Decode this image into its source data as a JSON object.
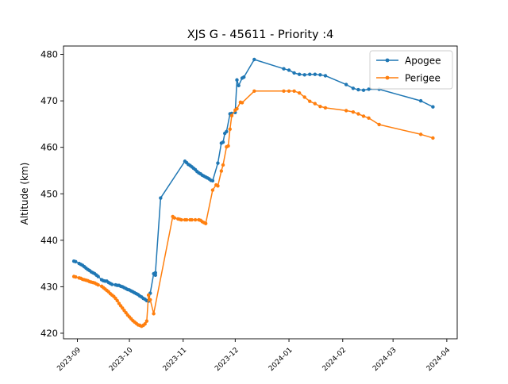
{
  "chart_data": {
    "type": "line",
    "title": "XJS G - 45611 - Priority :4",
    "xlabel": "",
    "ylabel": "Altitude (km)",
    "xlim": [
      "2023-08-24",
      "2024-04-07"
    ],
    "ylim": [
      418.8,
      481.8
    ],
    "x_ticks": [
      "2023-09",
      "2023-10",
      "2023-11",
      "2023-12",
      "2024-01",
      "2024-02",
      "2024-03",
      "2024-04"
    ],
    "y_ticks": [
      420,
      430,
      440,
      450,
      460,
      470,
      480
    ],
    "grid": false,
    "legend_position": "top-right",
    "series": [
      {
        "name": "Apogee",
        "color": "#1f77b4",
        "points": [
          [
            "2023-08-30",
            435.5
          ],
          [
            "2023-08-31",
            435.4
          ],
          [
            "2023-09-02",
            435.0
          ],
          [
            "2023-09-03",
            434.8
          ],
          [
            "2023-09-04",
            434.6
          ],
          [
            "2023-09-05",
            434.3
          ],
          [
            "2023-09-06",
            434.0
          ],
          [
            "2023-09-07",
            433.7
          ],
          [
            "2023-09-08",
            433.5
          ],
          [
            "2023-09-09",
            433.2
          ],
          [
            "2023-09-10",
            433.0
          ],
          [
            "2023-09-11",
            432.8
          ],
          [
            "2023-09-12",
            432.5
          ],
          [
            "2023-09-13",
            432.2
          ],
          [
            "2023-09-15",
            431.5
          ],
          [
            "2023-09-16",
            431.3
          ],
          [
            "2023-09-17",
            431.2
          ],
          [
            "2023-09-18",
            431.2
          ],
          [
            "2023-09-19",
            430.9
          ],
          [
            "2023-09-20",
            430.7
          ],
          [
            "2023-09-21",
            430.5
          ],
          [
            "2023-09-23",
            430.4
          ],
          [
            "2023-09-24",
            430.3
          ],
          [
            "2023-09-25",
            430.3
          ],
          [
            "2023-09-26",
            430.1
          ],
          [
            "2023-09-27",
            430.0
          ],
          [
            "2023-09-28",
            429.8
          ],
          [
            "2023-09-29",
            429.6
          ],
          [
            "2023-09-30",
            429.4
          ],
          [
            "2023-10-01",
            429.3
          ],
          [
            "2023-10-02",
            429.1
          ],
          [
            "2023-10-03",
            428.9
          ],
          [
            "2023-10-04",
            428.7
          ],
          [
            "2023-10-05",
            428.5
          ],
          [
            "2023-10-06",
            428.3
          ],
          [
            "2023-10-07",
            428.0
          ],
          [
            "2023-10-08",
            427.8
          ],
          [
            "2023-10-09",
            427.5
          ],
          [
            "2023-10-10",
            427.3
          ],
          [
            "2023-10-11",
            427.0
          ],
          [
            "2023-10-12",
            426.9
          ],
          [
            "2023-10-13",
            428.6
          ],
          [
            "2023-10-15",
            432.8
          ],
          [
            "2023-10-16",
            432.5
          ],
          [
            "2023-10-16",
            433.0
          ],
          [
            "2023-10-19",
            449.1
          ],
          [
            "2023-11-02",
            457.0
          ],
          [
            "2023-11-03",
            456.7
          ],
          [
            "2023-11-04",
            456.3
          ],
          [
            "2023-11-05",
            456.1
          ],
          [
            "2023-11-06",
            455.8
          ],
          [
            "2023-11-07",
            455.5
          ],
          [
            "2023-11-08",
            455.2
          ],
          [
            "2023-11-09",
            454.8
          ],
          [
            "2023-11-10",
            454.5
          ],
          [
            "2023-11-11",
            454.3
          ],
          [
            "2023-11-12",
            454.0
          ],
          [
            "2023-11-13",
            453.8
          ],
          [
            "2023-11-14",
            453.6
          ],
          [
            "2023-11-15",
            453.4
          ],
          [
            "2023-11-16",
            453.2
          ],
          [
            "2023-11-17",
            452.9
          ],
          [
            "2023-11-18",
            452.8
          ],
          [
            "2023-11-21",
            456.6
          ],
          [
            "2023-11-23",
            460.9
          ],
          [
            "2023-11-24",
            461.1
          ],
          [
            "2023-11-25",
            463.0
          ],
          [
            "2023-11-26",
            463.4
          ],
          [
            "2023-11-28",
            467.2
          ],
          [
            "2023-11-29",
            467.3
          ],
          [
            "2023-12-01",
            467.5
          ],
          [
            "2023-12-02",
            474.5
          ],
          [
            "2023-12-03",
            473.3
          ],
          [
            "2023-12-05",
            474.9
          ],
          [
            "2023-12-06",
            475.1
          ],
          [
            "2023-12-12",
            478.9
          ],
          [
            "2023-12-29",
            476.9
          ],
          [
            "2024-01-01",
            476.6
          ],
          [
            "2024-01-04",
            476.0
          ],
          [
            "2024-01-07",
            475.7
          ],
          [
            "2024-01-10",
            475.6
          ],
          [
            "2024-01-13",
            475.7
          ],
          [
            "2024-01-16",
            475.7
          ],
          [
            "2024-01-19",
            475.6
          ],
          [
            "2024-01-22",
            475.4
          ],
          [
            "2024-02-03",
            473.5
          ],
          [
            "2024-02-07",
            472.7
          ],
          [
            "2024-02-10",
            472.4
          ],
          [
            "2024-02-13",
            472.3
          ],
          [
            "2024-02-16",
            472.5
          ],
          [
            "2024-02-22",
            472.5
          ],
          [
            "2024-03-17",
            470.0
          ],
          [
            "2024-03-24",
            468.7
          ]
        ]
      },
      {
        "name": "Perigee",
        "color": "#ff7f0e",
        "points": [
          [
            "2023-08-30",
            432.2
          ],
          [
            "2023-08-31",
            432.1
          ],
          [
            "2023-09-02",
            431.9
          ],
          [
            "2023-09-03",
            431.8
          ],
          [
            "2023-09-04",
            431.6
          ],
          [
            "2023-09-05",
            431.5
          ],
          [
            "2023-09-06",
            431.4
          ],
          [
            "2023-09-07",
            431.3
          ],
          [
            "2023-09-08",
            431.1
          ],
          [
            "2023-09-09",
            431.0
          ],
          [
            "2023-09-10",
            430.9
          ],
          [
            "2023-09-11",
            430.8
          ],
          [
            "2023-09-12",
            430.6
          ],
          [
            "2023-09-13",
            430.4
          ],
          [
            "2023-09-15",
            430.1
          ],
          [
            "2023-09-16",
            429.8
          ],
          [
            "2023-09-17",
            429.5
          ],
          [
            "2023-09-18",
            429.2
          ],
          [
            "2023-09-19",
            428.9
          ],
          [
            "2023-09-20",
            428.5
          ],
          [
            "2023-09-21",
            428.2
          ],
          [
            "2023-09-22",
            427.9
          ],
          [
            "2023-09-23",
            427.5
          ],
          [
            "2023-09-24",
            427.0
          ],
          [
            "2023-09-25",
            426.4
          ],
          [
            "2023-09-26",
            425.9
          ],
          [
            "2023-09-27",
            425.4
          ],
          [
            "2023-09-28",
            424.9
          ],
          [
            "2023-09-29",
            424.4
          ],
          [
            "2023-09-30",
            423.9
          ],
          [
            "2023-10-01",
            423.5
          ],
          [
            "2023-10-02",
            423.1
          ],
          [
            "2023-10-03",
            422.7
          ],
          [
            "2023-10-04",
            422.4
          ],
          [
            "2023-10-05",
            422.1
          ],
          [
            "2023-10-06",
            421.8
          ],
          [
            "2023-10-07",
            421.7
          ],
          [
            "2023-10-08",
            421.5
          ],
          [
            "2023-10-09",
            421.7
          ],
          [
            "2023-10-10",
            422.0
          ],
          [
            "2023-10-11",
            422.6
          ],
          [
            "2023-10-12",
            428.2
          ],
          [
            "2023-10-13",
            427.2
          ],
          [
            "2023-10-15",
            424.2
          ],
          [
            "2023-10-26",
            445.1
          ],
          [
            "2023-10-27",
            444.8
          ],
          [
            "2023-10-29",
            444.6
          ],
          [
            "2023-10-30",
            444.5
          ],
          [
            "2023-10-31",
            444.4
          ],
          [
            "2023-11-02",
            444.4
          ],
          [
            "2023-11-03",
            444.4
          ],
          [
            "2023-11-05",
            444.4
          ],
          [
            "2023-11-06",
            444.4
          ],
          [
            "2023-11-08",
            444.4
          ],
          [
            "2023-11-10",
            444.4
          ],
          [
            "2023-11-11",
            444.3
          ],
          [
            "2023-11-12",
            444.0
          ],
          [
            "2023-11-13",
            443.8
          ],
          [
            "2023-11-14",
            443.6
          ],
          [
            "2023-11-18",
            450.8
          ],
          [
            "2023-11-20",
            451.9
          ],
          [
            "2023-11-21",
            451.7
          ],
          [
            "2023-11-23",
            454.9
          ],
          [
            "2023-11-24",
            456.2
          ],
          [
            "2023-11-26",
            460.1
          ],
          [
            "2023-11-27",
            460.3
          ],
          [
            "2023-11-28",
            463.9
          ],
          [
            "2023-11-29",
            466.8
          ],
          [
            "2023-12-01",
            468.0
          ],
          [
            "2023-12-02",
            468.3
          ],
          [
            "2023-12-04",
            469.7
          ],
          [
            "2023-12-05",
            469.6
          ],
          [
            "2023-12-12",
            472.1
          ],
          [
            "2023-12-29",
            472.1
          ],
          [
            "2024-01-01",
            472.1
          ],
          [
            "2024-01-04",
            472.1
          ],
          [
            "2024-01-07",
            471.7
          ],
          [
            "2024-01-10",
            470.8
          ],
          [
            "2024-01-13",
            469.9
          ],
          [
            "2024-01-16",
            469.4
          ],
          [
            "2024-01-19",
            468.8
          ],
          [
            "2024-01-22",
            468.5
          ],
          [
            "2024-02-03",
            467.9
          ],
          [
            "2024-02-07",
            467.6
          ],
          [
            "2024-02-10",
            467.2
          ],
          [
            "2024-02-13",
            466.7
          ],
          [
            "2024-02-16",
            466.3
          ],
          [
            "2024-02-22",
            464.9
          ],
          [
            "2024-03-17",
            462.8
          ],
          [
            "2024-03-24",
            462.0
          ]
        ]
      }
    ]
  }
}
